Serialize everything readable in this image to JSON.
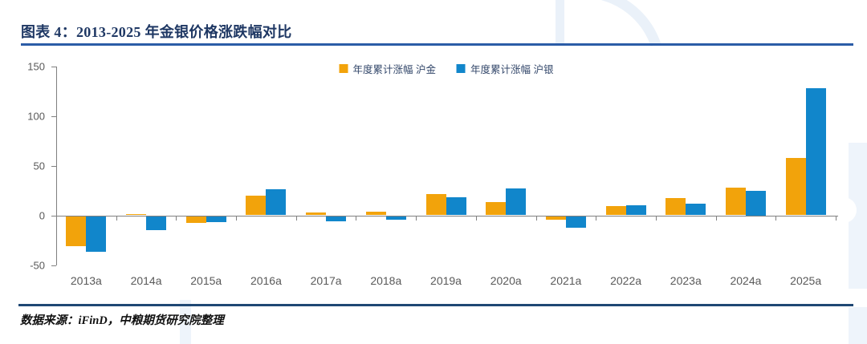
{
  "header": {
    "title": "图表 4：2013-2025 年金银价格涨跌幅对比"
  },
  "footer": {
    "source": "数据来源：iFinD，中粮期货研究院整理"
  },
  "colors": {
    "gold_series": "#F2A30B",
    "silver_series": "#1186CB",
    "title_navy": "#1F3864",
    "top_rule": "#2B5CA7",
    "bottom_rule": "#1F4874",
    "axis_gray": "#808080",
    "label_gray": "#595959",
    "watermark_blue": "#EAF1F9"
  },
  "chart_data": {
    "type": "bar",
    "title": "图表 4：2013-2025 年金银价格涨跌幅对比",
    "categories": [
      "2013a",
      "2014a",
      "2015a",
      "2016a",
      "2017a",
      "2018a",
      "2019a",
      "2020a",
      "2021a",
      "2022a",
      "2023a",
      "2024a",
      "2025a"
    ],
    "series": [
      {
        "name": "年度累计涨幅 沪金",
        "color": "#F2A30B",
        "values": [
          -30,
          1,
          -7,
          20,
          3,
          4,
          21,
          13,
          -4,
          9,
          17,
          28,
          58
        ]
      },
      {
        "name": "年度累计涨幅 沪银",
        "color": "#1186CB",
        "values": [
          -36,
          -14,
          -6,
          26,
          -5,
          -4,
          18,
          27,
          -12,
          10,
          12,
          25,
          128
        ]
      }
    ],
    "ylabel": "",
    "xlabel": "",
    "ylim": [
      -50,
      150
    ],
    "yticks": [
      150,
      100,
      50,
      0,
      -50
    ],
    "grid": false,
    "legend_position": "top-center"
  }
}
